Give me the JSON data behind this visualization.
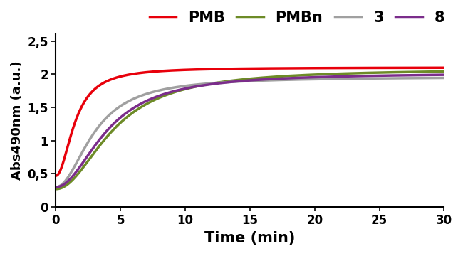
{
  "xlabel": "Time (min)",
  "ylabel": "Abs490nm (a.u.)",
  "xlim": [
    0,
    30
  ],
  "ylim": [
    0,
    2.6
  ],
  "yticks": [
    0,
    0.5,
    1,
    1.5,
    2,
    2.5
  ],
  "ytick_labels": [
    "0",
    "0,5",
    "1",
    "1,5",
    "2",
    "2,5"
  ],
  "xticks": [
    0,
    5,
    10,
    15,
    20,
    25,
    30
  ],
  "series": {
    "PMB": {
      "color": "#e8000b",
      "linewidth": 2.5,
      "start": 0.47,
      "plateau": 2.1,
      "k": 0.55,
      "t0": 1.5
    },
    "PMBn": {
      "color": "#6d8b27",
      "linewidth": 2.5,
      "start": 0.27,
      "plateau": 2.08,
      "k": 0.3,
      "t0": 4.5
    },
    "3": {
      "color": "#a0a0a0",
      "linewidth": 2.5,
      "start": 0.3,
      "plateau": 1.96,
      "k": 0.38,
      "t0": 3.0
    },
    "8": {
      "color": "#7b2d8b",
      "linewidth": 2.5,
      "start": 0.3,
      "plateau": 2.02,
      "k": 0.32,
      "t0": 4.0
    }
  },
  "series_order": [
    "PMB",
    "PMBn",
    "3",
    "8"
  ],
  "legend_labels": [
    "PMB",
    "PMBn",
    "3",
    "8"
  ],
  "legend_colors": [
    "#e8000b",
    "#6d8b27",
    "#a0a0a0",
    "#7b2d8b"
  ],
  "xlabel_fontsize": 15,
  "ylabel_fontsize": 13,
  "tick_fontsize": 12,
  "legend_fontsize": 15,
  "axis_linewidth": 1.5
}
